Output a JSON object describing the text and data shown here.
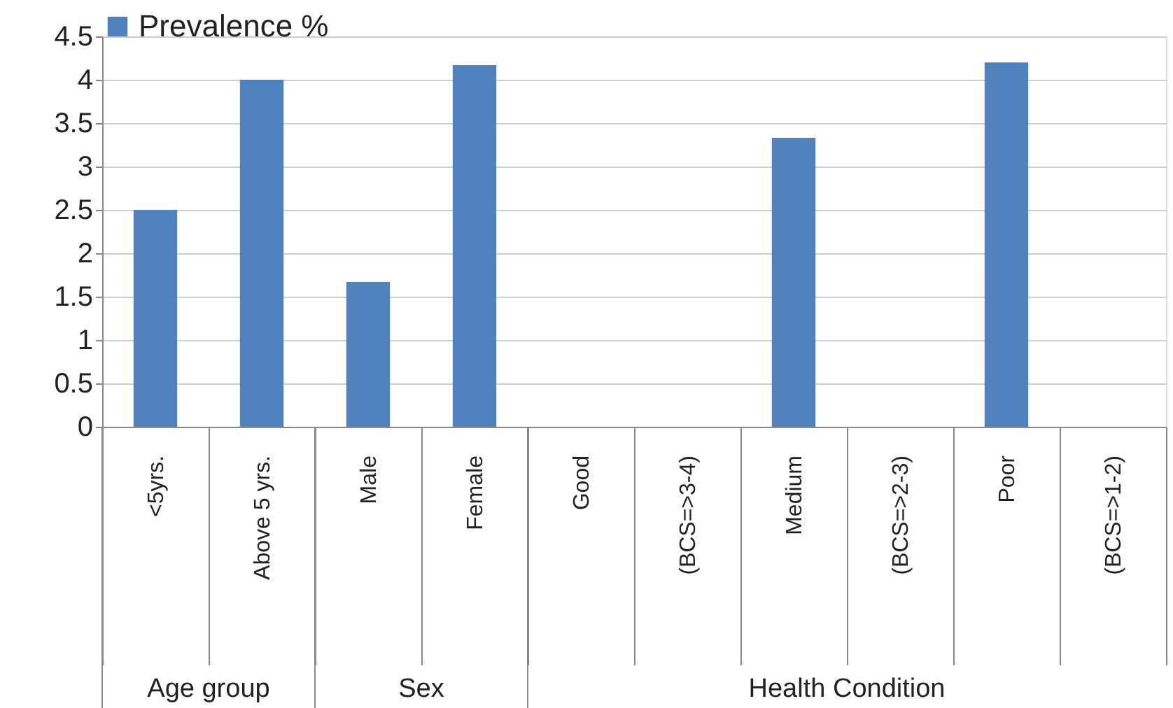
{
  "chart_data": {
    "type": "bar",
    "categories": [
      "<5yrs.",
      "Above 5 yrs.",
      "Male",
      "Female",
      "Good",
      "(BCS=>3-4)",
      "Medium",
      "(BCS=>2-3)",
      "Poor",
      "(BCS=>1-2)"
    ],
    "series": [
      {
        "name": "Prevalence %",
        "color": "#4f81bd",
        "values": [
          2.5,
          4.0,
          1.67,
          4.17,
          null,
          null,
          3.33,
          null,
          4.2,
          null
        ]
      }
    ],
    "ylim": [
      0,
      4.5
    ],
    "yticks": [
      0,
      0.5,
      1,
      1.5,
      2,
      2.5,
      3,
      3.5,
      4,
      4.5
    ],
    "grid": "y",
    "legend": "top",
    "annotations": [
      "Age group",
      "Sex",
      "Health Condition"
    ]
  }
}
